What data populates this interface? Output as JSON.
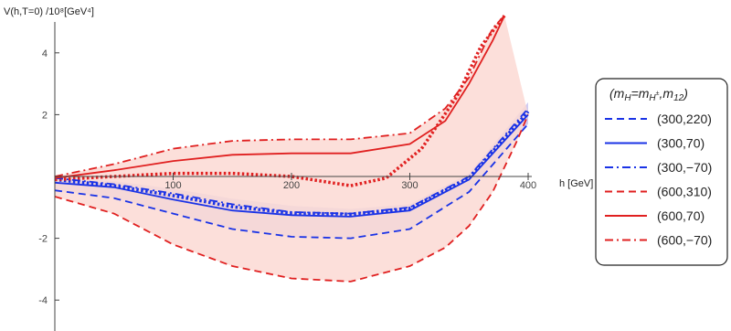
{
  "chart_data": {
    "type": "line",
    "ylabel": "V(h,T=0) /10⁸[GeV⁴]",
    "xlabel": "h [GeV]",
    "xlim": [
      0,
      400
    ],
    "ylim": [
      -5,
      5
    ],
    "xticks": [
      100,
      200,
      300,
      400
    ],
    "yticks": [
      -4,
      -2,
      2,
      4
    ],
    "xtick_labels": [
      "100",
      "200",
      "300",
      "400"
    ],
    "ytick_labels": [
      "-4",
      "-2",
      "2",
      "4"
    ],
    "grid": false,
    "legend_position": "right",
    "legend_title": "(m_H=m_H±,m_12)",
    "colors": {
      "blue": "#1a33e6",
      "red": "#e02020",
      "blue_band": "#c9c3f0",
      "red_band": "#fbd9d3"
    },
    "bands": [
      {
        "color": "blue_band",
        "upper": {
          "x": [
            0,
            50,
            100,
            150,
            200,
            250,
            300,
            350,
            400
          ],
          "y": [
            0.0,
            -0.15,
            -0.4,
            -0.72,
            -0.95,
            -1.05,
            -0.9,
            0.1,
            2.4
          ]
        },
        "lower": {
          "x": [
            0,
            50,
            100,
            150,
            200,
            250,
            300,
            350,
            400
          ],
          "y": [
            -0.45,
            -0.7,
            -1.2,
            -1.7,
            -1.95,
            -2.0,
            -1.7,
            -0.5,
            1.7
          ]
        }
      },
      {
        "color": "red_band",
        "upper": {
          "x": [
            0,
            50,
            100,
            150,
            200,
            230,
            250,
            300,
            330,
            350,
            370,
            380
          ],
          "y": [
            0.0,
            0.4,
            0.9,
            1.15,
            1.2,
            1.2,
            1.2,
            1.4,
            2.2,
            3.2,
            4.8,
            5.2
          ]
        },
        "lower": {
          "x": [
            0,
            50,
            100,
            150,
            200,
            250,
            300,
            330,
            350,
            370,
            390,
            400
          ],
          "y": [
            -0.65,
            -1.2,
            -2.2,
            -2.9,
            -3.3,
            -3.4,
            -2.9,
            -2.3,
            -1.6,
            -0.5,
            1.1,
            2.0
          ]
        }
      }
    ],
    "series": [
      {
        "name": "(300,220)",
        "color": "blue",
        "dash": "dashed",
        "x": [
          0,
          50,
          100,
          150,
          200,
          250,
          300,
          350,
          400
        ],
        "y": [
          -0.45,
          -0.7,
          -1.2,
          -1.7,
          -1.95,
          -2.0,
          -1.7,
          -0.5,
          1.7
        ]
      },
      {
        "name": "(300,70)",
        "color": "blue",
        "dash": "solid",
        "x": [
          0,
          50,
          100,
          150,
          200,
          250,
          300,
          350,
          400
        ],
        "y": [
          -0.2,
          -0.35,
          -0.75,
          -1.1,
          -1.25,
          -1.3,
          -1.1,
          -0.1,
          2.0
        ]
      },
      {
        "name": "(300,−70)",
        "color": "blue",
        "dash": "dashdot",
        "x": [
          0,
          50,
          100,
          150,
          200,
          250,
          300,
          350,
          400
        ],
        "y": [
          -0.05,
          -0.25,
          -0.55,
          -0.9,
          -1.15,
          -1.2,
          -1.0,
          0.0,
          2.2
        ]
      },
      {
        "name": "(600,310)",
        "color": "red",
        "dash": "dashed",
        "x": [
          0,
          50,
          100,
          150,
          200,
          250,
          300,
          330,
          350,
          370,
          390,
          400
        ],
        "y": [
          -0.65,
          -1.2,
          -2.2,
          -2.9,
          -3.3,
          -3.4,
          -2.9,
          -2.3,
          -1.6,
          -0.5,
          1.1,
          2.0
        ]
      },
      {
        "name": "(600,70)",
        "color": "red",
        "dash": "solid",
        "x": [
          0,
          50,
          100,
          150,
          200,
          250,
          300,
          330,
          350,
          370,
          380
        ],
        "y": [
          -0.05,
          0.2,
          0.5,
          0.7,
          0.75,
          0.75,
          1.05,
          1.8,
          3.0,
          4.4,
          5.2
        ]
      },
      {
        "name": "(600,−70)",
        "color": "red",
        "dash": "dashdot",
        "x": [
          0,
          50,
          100,
          150,
          200,
          250,
          300,
          330,
          350,
          370,
          380
        ],
        "y": [
          0.0,
          0.4,
          0.9,
          1.15,
          1.2,
          1.2,
          1.4,
          2.2,
          3.2,
          4.8,
          5.2
        ]
      }
    ],
    "extra_lines": [
      {
        "color": "blue",
        "dash": "dotted",
        "x": [
          0,
          50,
          100,
          150,
          200,
          250,
          300,
          350,
          400
        ],
        "y": [
          -0.1,
          -0.3,
          -0.62,
          -0.98,
          -1.18,
          -1.22,
          -1.03,
          -0.05,
          2.1
        ]
      },
      {
        "color": "red",
        "dash": "dotted",
        "x": [
          0,
          50,
          100,
          150,
          200,
          250,
          280,
          310,
          340,
          360,
          380
        ],
        "y": [
          -0.1,
          0.0,
          0.1,
          0.1,
          0.0,
          -0.3,
          -0.05,
          0.9,
          2.6,
          4.2,
          5.2
        ]
      }
    ]
  }
}
